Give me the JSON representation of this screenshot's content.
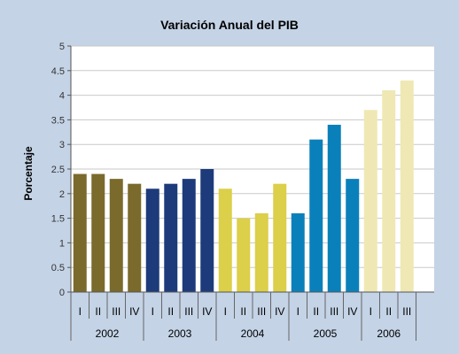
{
  "chart_data": {
    "type": "bar",
    "title": "Variación Anual del PIB",
    "xlabel": "",
    "ylabel": "Porcentaje",
    "ylim": [
      0,
      5
    ],
    "yticks": [
      "0",
      "0.5",
      "1",
      "1.5",
      "2",
      "2.5",
      "3",
      "3.5",
      "4",
      "4.5",
      "5"
    ],
    "grid": true,
    "groups": [
      {
        "year": "2002",
        "color": "#7a6a2c",
        "quarters": [
          "I",
          "II",
          "III",
          "IV"
        ],
        "values": [
          2.4,
          2.4,
          2.3,
          2.2
        ]
      },
      {
        "year": "2003",
        "color": "#1d3b7a",
        "quarters": [
          "I",
          "II",
          "III",
          "IV"
        ],
        "values": [
          2.1,
          2.2,
          2.3,
          2.5
        ]
      },
      {
        "year": "2004",
        "color": "#dccf49",
        "quarters": [
          "I",
          "II",
          "III",
          "IV"
        ],
        "values": [
          2.1,
          1.5,
          1.6,
          2.2
        ]
      },
      {
        "year": "2005",
        "color": "#0a80bb",
        "quarters": [
          "I",
          "II",
          "III",
          "IV"
        ],
        "values": [
          1.6,
          3.1,
          3.4,
          2.3
        ]
      },
      {
        "year": "2006",
        "color": "#efe8b4",
        "quarters": [
          "I",
          "II",
          "III"
        ],
        "values": [
          3.7,
          4.1,
          4.3
        ]
      }
    ]
  }
}
